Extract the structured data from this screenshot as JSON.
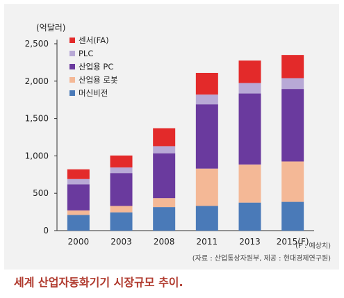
{
  "chart_data": {
    "type": "bar",
    "stacked": true,
    "unit_label": "(억달러)",
    "categories": [
      "2000",
      "2003",
      "2008",
      "2011",
      "2013",
      "2015(F)"
    ],
    "yticks": [
      "0",
      "500",
      "1,000",
      "1,500",
      "2,000",
      "2,500"
    ],
    "ylim": [
      0,
      2500
    ],
    "grid": false,
    "legend_position": "top-left",
    "series": [
      {
        "name": "머신비전",
        "color": "#4a7ab8",
        "values": [
          210,
          245,
          315,
          330,
          375,
          385
        ]
      },
      {
        "name": "산업용 로봇",
        "color": "#f4b896",
        "values": [
          60,
          85,
          120,
          500,
          510,
          540
        ]
      },
      {
        "name": "산업용 PC",
        "color": "#6a3a9e",
        "values": [
          350,
          440,
          600,
          860,
          950,
          970
        ]
      },
      {
        "name": "PLC",
        "color": "#b8a9d6",
        "values": [
          70,
          75,
          95,
          130,
          140,
          145
        ]
      },
      {
        "name": "센서(FA)",
        "color": "#e32a2a",
        "values": [
          130,
          160,
          240,
          290,
          300,
          310
        ]
      }
    ],
    "note_forecast": "(F : 예상치)",
    "note_source": "(자료 : 산업통상자원부, 제공 : 현대경제연구원)"
  },
  "caption": "세계 산업자동화기기 시장규모 추이."
}
